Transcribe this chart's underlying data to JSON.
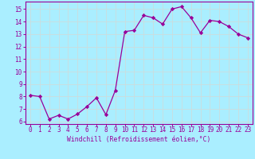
{
  "x": [
    0,
    1,
    2,
    3,
    4,
    5,
    6,
    7,
    8,
    9,
    10,
    11,
    12,
    13,
    14,
    15,
    16,
    17,
    18,
    19,
    20,
    21,
    22,
    23
  ],
  "y": [
    8.1,
    8.0,
    6.2,
    6.5,
    6.2,
    6.6,
    7.2,
    7.9,
    6.55,
    8.5,
    13.2,
    13.3,
    14.5,
    14.3,
    13.8,
    15.0,
    15.2,
    14.3,
    13.1,
    14.1,
    14.0,
    13.6,
    13.0,
    12.7
  ],
  "line_color": "#990099",
  "marker": "D",
  "marker_size": 2.2,
  "bg_color": "#aaeeff",
  "grid_color": "#ccdddd",
  "xlabel": "Windchill (Refroidissement éolien,°C)",
  "xlabel_color": "#990099",
  "tick_color": "#990099",
  "spine_color": "#990099",
  "ylim": [
    5.8,
    15.6
  ],
  "xlim": [
    -0.5,
    23.5
  ],
  "yticks": [
    6,
    7,
    8,
    9,
    10,
    11,
    12,
    13,
    14,
    15
  ],
  "xticks": [
    0,
    1,
    2,
    3,
    4,
    5,
    6,
    7,
    8,
    9,
    10,
    11,
    12,
    13,
    14,
    15,
    16,
    17,
    18,
    19,
    20,
    21,
    22,
    23
  ],
  "tick_fontsize": 5.5,
  "xlabel_fontsize": 5.8
}
